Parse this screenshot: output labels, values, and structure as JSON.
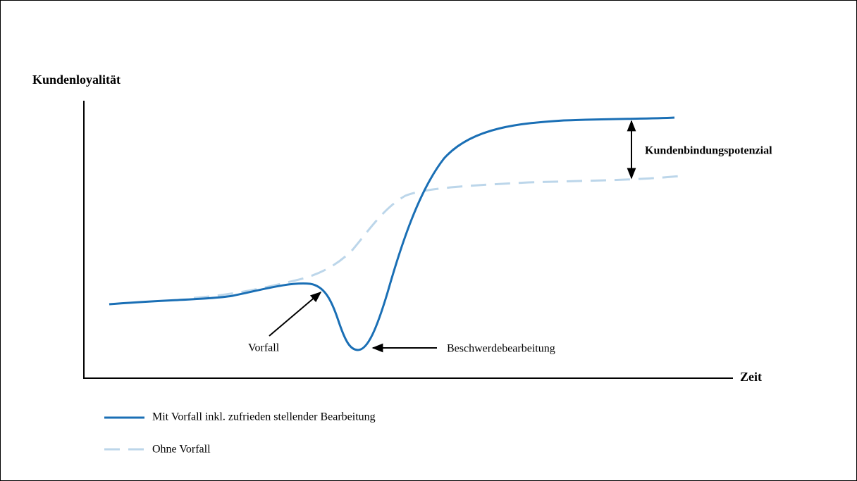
{
  "y_axis_label": "Kundenloyalität",
  "x_axis_label": "Zeit",
  "annotations": {
    "incident": "Vorfall",
    "complaint_handling": "Beschwerdebearbeitung",
    "retention_potential": "Kundenbindungspotenzial"
  },
  "legend": [
    {
      "label": "Mit Vorfall inkl. zufrieden stellender Bearbeitung"
    },
    {
      "label": "Ohne Vorfall"
    }
  ]
}
